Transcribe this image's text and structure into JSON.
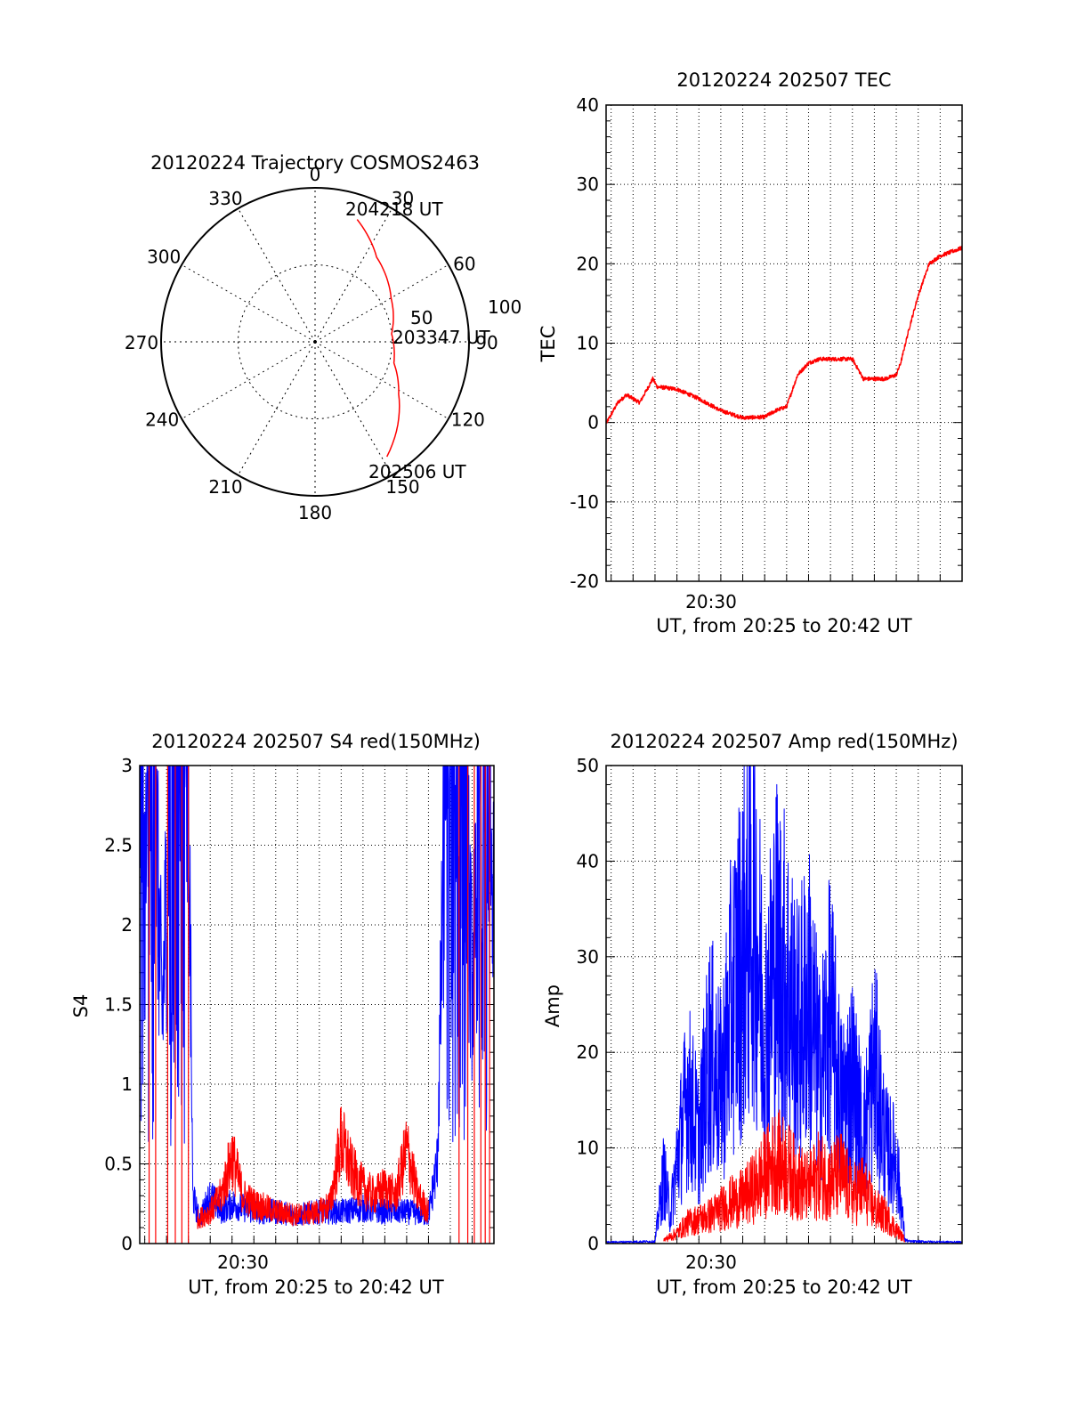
{
  "colors": {
    "red": "#ff0000",
    "blue": "#0000ff",
    "axis": "#000000",
    "grid": "#000000"
  },
  "chart_data": [
    {
      "type": "polar",
      "title": "20120224 Trajectory COSMOS2463",
      "azimuth_labels": [
        "0",
        "30",
        "60",
        "90",
        "120",
        "150",
        "180",
        "210",
        "240",
        "270",
        "300",
        "330"
      ],
      "ring_labels": [
        "50",
        "100"
      ],
      "rlim": [
        0,
        100
      ],
      "annotations": [
        "204218 UT",
        "203347 UT",
        "202506 UT"
      ],
      "series": [
        {
          "color": "#ff0000",
          "points": [
            {
              "az": 19,
              "r": 84
            },
            {
              "az": 36,
              "r": 68
            },
            {
              "az": 60,
              "r": 57
            },
            {
              "az": 84,
              "r": 50
            },
            {
              "az": 105,
              "r": 53
            },
            {
              "az": 122,
              "r": 64
            },
            {
              "az": 148,
              "r": 88
            }
          ]
        }
      ]
    },
    {
      "type": "line",
      "title": "20120224 202507 TEC",
      "ylabel": "TEC",
      "xlabel": "UT, from 20:25 to 20:42 UT",
      "x_tick_label": "20:30",
      "x_tick_minute": 30,
      "xlim_minutes": [
        25.77,
        42.0
      ],
      "ylim": [
        -20,
        40
      ],
      "y_ticks": [
        "-20",
        "-10",
        "0",
        "10",
        "20",
        "30",
        "40"
      ],
      "series": [
        {
          "color": "#ff0000",
          "x_minutes": [
            25.8,
            26.3,
            26.7,
            27.0,
            27.3,
            27.9,
            28.1,
            29.0,
            30.0,
            31.0,
            32.0,
            33.0,
            33.5,
            34.0,
            34.5,
            35.0,
            35.5,
            36.0,
            37.0,
            37.5,
            38.5,
            39.0,
            39.2,
            39.6,
            40.0,
            40.5,
            41.0,
            41.5,
            42.0
          ],
          "values": [
            0,
            2.5,
            3.5,
            3.0,
            2.5,
            5.5,
            4.5,
            4.2,
            3.0,
            1.5,
            0.6,
            0.7,
            1.5,
            2.0,
            6.0,
            7.5,
            8.0,
            8.0,
            8.0,
            5.5,
            5.5,
            6.0,
            7.5,
            12,
            16,
            20,
            21,
            21.5,
            22
          ]
        }
      ]
    },
    {
      "type": "line",
      "title": "20120224 202507 S4 red(150MHz)",
      "ylabel": "S4",
      "xlabel": "UT, from 20:25 to 20:42 UT",
      "x_tick_label": "20:30",
      "x_tick_minute": 30,
      "xlim_minutes": [
        25.77,
        42.0
      ],
      "ylim": [
        0,
        3
      ],
      "y_ticks": [
        "0",
        "0.5",
        "1",
        "1.5",
        "2",
        "2.5",
        "3"
      ],
      "series": [
        {
          "color": "#0000ff",
          "x_minutes": [
            25.8,
            26.0,
            26.4,
            26.8,
            27.2,
            27.6,
            28.0,
            28.2,
            28.5,
            29.0,
            29.5,
            30.0,
            31.0,
            32.0,
            33.0,
            34.0,
            35.0,
            36.0,
            37.0,
            38.0,
            39.0,
            39.4,
            39.8,
            40.2,
            40.6,
            41.0,
            41.5,
            42.0
          ],
          "values": [
            3,
            2.2,
            3,
            1.4,
            3,
            2.6,
            3,
            0.3,
            0.15,
            0.3,
            0.2,
            0.25,
            0.2,
            0.2,
            0.18,
            0.2,
            0.2,
            0.22,
            0.2,
            0.2,
            0.18,
            0.5,
            3,
            2.6,
            3,
            1.6,
            3,
            2.2
          ]
        },
        {
          "color": "#ff0000",
          "x_minutes": [
            28.4,
            29.0,
            29.5,
            30.0,
            30.5,
            31.0,
            32.0,
            33.0,
            34.0,
            34.5,
            35.0,
            35.5,
            36.0,
            36.5,
            37.0,
            37.5,
            38.0,
            38.5,
            39.0
          ],
          "values": [
            0.15,
            0.2,
            0.3,
            0.55,
            0.3,
            0.25,
            0.2,
            0.18,
            0.2,
            0.25,
            0.65,
            0.45,
            0.35,
            0.3,
            0.35,
            0.3,
            0.6,
            0.3,
            0.2
          ]
        }
      ]
    },
    {
      "type": "line",
      "title": "20120224 202507 Amp red(150MHz)",
      "ylabel": "Amp",
      "xlabel": "UT, from 20:25 to 20:42 UT",
      "x_tick_label": "20:30",
      "x_tick_minute": 30,
      "xlim_minutes": [
        25.77,
        42.0
      ],
      "ylim": [
        0,
        50
      ],
      "y_ticks": [
        "0",
        "10",
        "20",
        "30",
        "40",
        "50"
      ],
      "series": [
        {
          "color": "#0000ff",
          "x_minutes": [
            25.8,
            28.0,
            28.4,
            28.7,
            29.0,
            29.5,
            30.0,
            30.5,
            31.0,
            31.5,
            32.0,
            32.5,
            33.0,
            33.5,
            34.0,
            34.5,
            35.0,
            35.5,
            36.0,
            36.5,
            37.0,
            37.5,
            38.0,
            38.5,
            39.0,
            39.4,
            39.6,
            42.0
          ],
          "values": [
            0.2,
            0.3,
            10,
            4,
            12,
            22,
            15,
            28,
            22,
            35,
            42,
            50,
            30,
            42,
            38,
            30,
            36,
            24,
            33,
            20,
            24,
            15,
            26,
            14,
            12,
            0.5,
            0.3,
            0.2
          ]
        },
        {
          "color": "#ff0000",
          "x_minutes": [
            28.4,
            29.0,
            29.5,
            30.0,
            30.5,
            31.0,
            31.5,
            32.0,
            32.5,
            33.0,
            33.5,
            34.0,
            34.5,
            35.0,
            35.5,
            36.0,
            36.5,
            37.0,
            37.5,
            38.0,
            38.5,
            39.0,
            39.4
          ],
          "values": [
            0.5,
            1.5,
            3,
            3.5,
            4,
            5,
            6,
            6.5,
            8,
            10,
            12,
            11,
            9,
            8,
            10,
            9,
            10,
            7,
            8,
            5,
            4,
            2,
            0.5
          ]
        }
      ]
    }
  ]
}
